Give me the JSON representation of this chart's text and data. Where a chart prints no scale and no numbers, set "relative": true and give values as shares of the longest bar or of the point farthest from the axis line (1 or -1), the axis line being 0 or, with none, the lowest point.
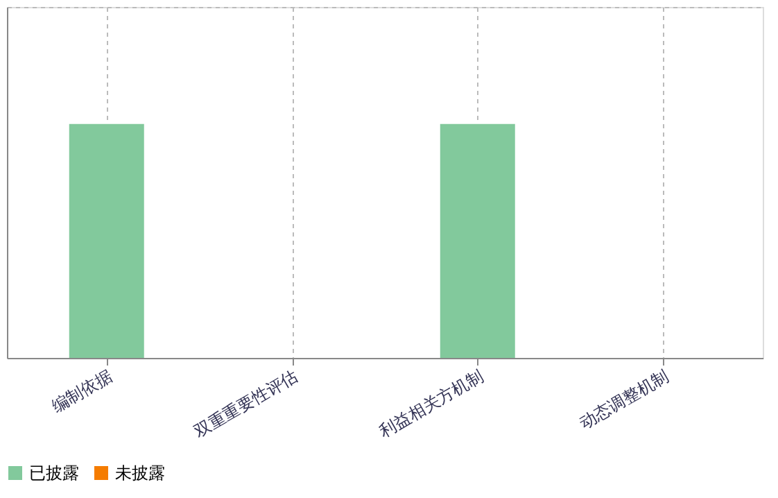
{
  "chart_data": {
    "type": "bar",
    "relative": true,
    "grid": true,
    "legend": "bottom",
    "categories": [
      "编制依据",
      "双重重要性评估",
      "利益相关方机制",
      "动态调整机制"
    ],
    "series": [
      {
        "name": "已披露",
        "color": "#82c99c",
        "values": [
          1,
          0,
          1,
          0
        ]
      },
      {
        "name": "未披露",
        "color": "#f57c00",
        "values": [
          0,
          0,
          0,
          0
        ]
      }
    ]
  }
}
